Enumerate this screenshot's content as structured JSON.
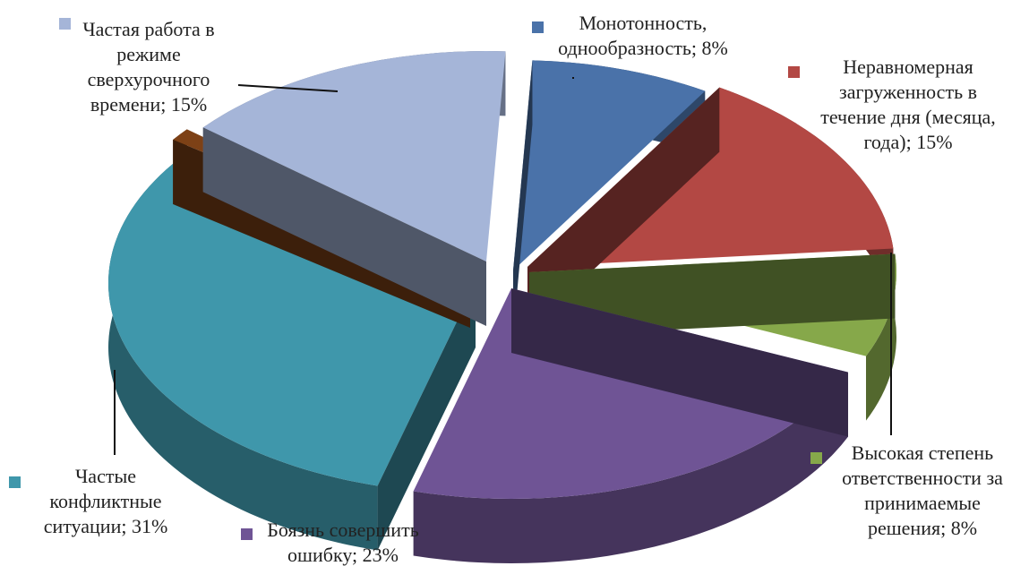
{
  "chart_data": {
    "type": "pie",
    "style": "3d-exploded",
    "legend_position": "inline-labels",
    "slices": [
      {
        "id": "monotony",
        "label_lines": [
          "Монотонность,",
          "однообразность; 8%"
        ],
        "value": 8,
        "color": "#4a72a9"
      },
      {
        "id": "uneven-load",
        "label_lines": [
          "Неравномерная",
          "загруженность в",
          "течение дня (месяца,",
          "года); 15%"
        ],
        "value": 15,
        "color": "#b34844"
      },
      {
        "id": "high-responsibility",
        "label_lines": [
          "Высокая степень",
          "ответственности за",
          "принимаемые",
          "решения; 8%"
        ],
        "value": 8,
        "color": "#86a84a"
      },
      {
        "id": "fear-of-mistake",
        "label_lines": [
          "Боязнь совершить",
          "ошибку; 23%"
        ],
        "value": 23,
        "color": "#6f5495"
      },
      {
        "id": "frequent-conflicts",
        "label_lines": [
          "Частые",
          "конфликтные",
          "ситуации; 31%"
        ],
        "value": 31,
        "color": "#3f97ab"
      },
      {
        "id": "unlabeled-brown",
        "label_lines": [],
        "value": 1,
        "color": "#7d4116"
      },
      {
        "id": "overtime-work",
        "label_lines": [
          "Частая работа в",
          "режиме",
          "сверхурочного",
          "времени; 15%"
        ],
        "value": 15,
        "color": "#a5b5d8"
      }
    ]
  }
}
